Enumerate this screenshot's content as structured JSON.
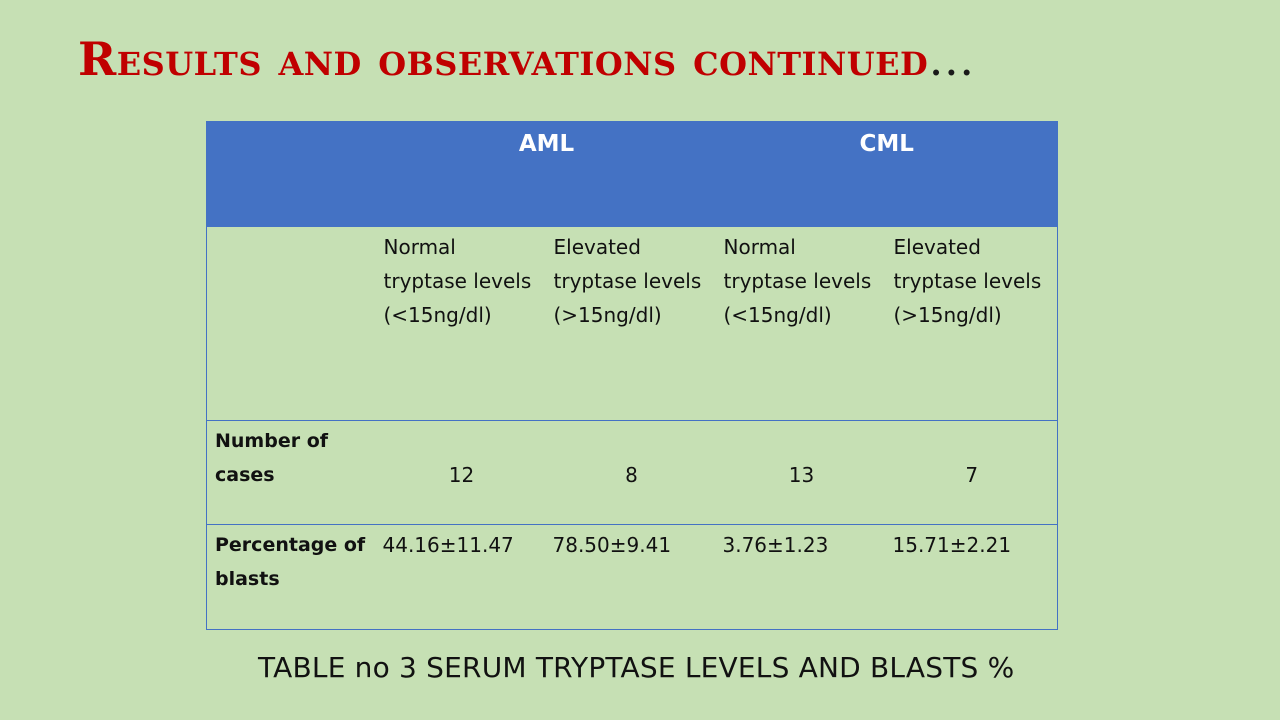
{
  "slide": {
    "title": "Results and observations continued",
    "title_suffix": "…",
    "caption": "TABLE no 3  SERUM TRYPTASE LEVELS AND BLASTS %"
  },
  "table": {
    "group_headers": [
      "AML",
      "CML"
    ],
    "sub_headers": [
      "Normal tryptase levels (<15ng/dl)",
      "Elevated tryptase levels (>15ng/dl)",
      "Normal tryptase levels (<15ng/dl)",
      "Elevated tryptase levels (>15ng/dl)"
    ],
    "rows": [
      {
        "label": "Number of cases",
        "values": [
          "12",
          "8",
          "13",
          "7"
        ]
      },
      {
        "label": "Percentage of blasts",
        "values": [
          "44.16±11.47",
          "78.50±9.41",
          "3.76±1.23",
          "15.71±2.21"
        ]
      }
    ]
  },
  "colors": {
    "background": "#c6e0b4",
    "header_fill": "#4472c4",
    "title": "#c00000"
  }
}
